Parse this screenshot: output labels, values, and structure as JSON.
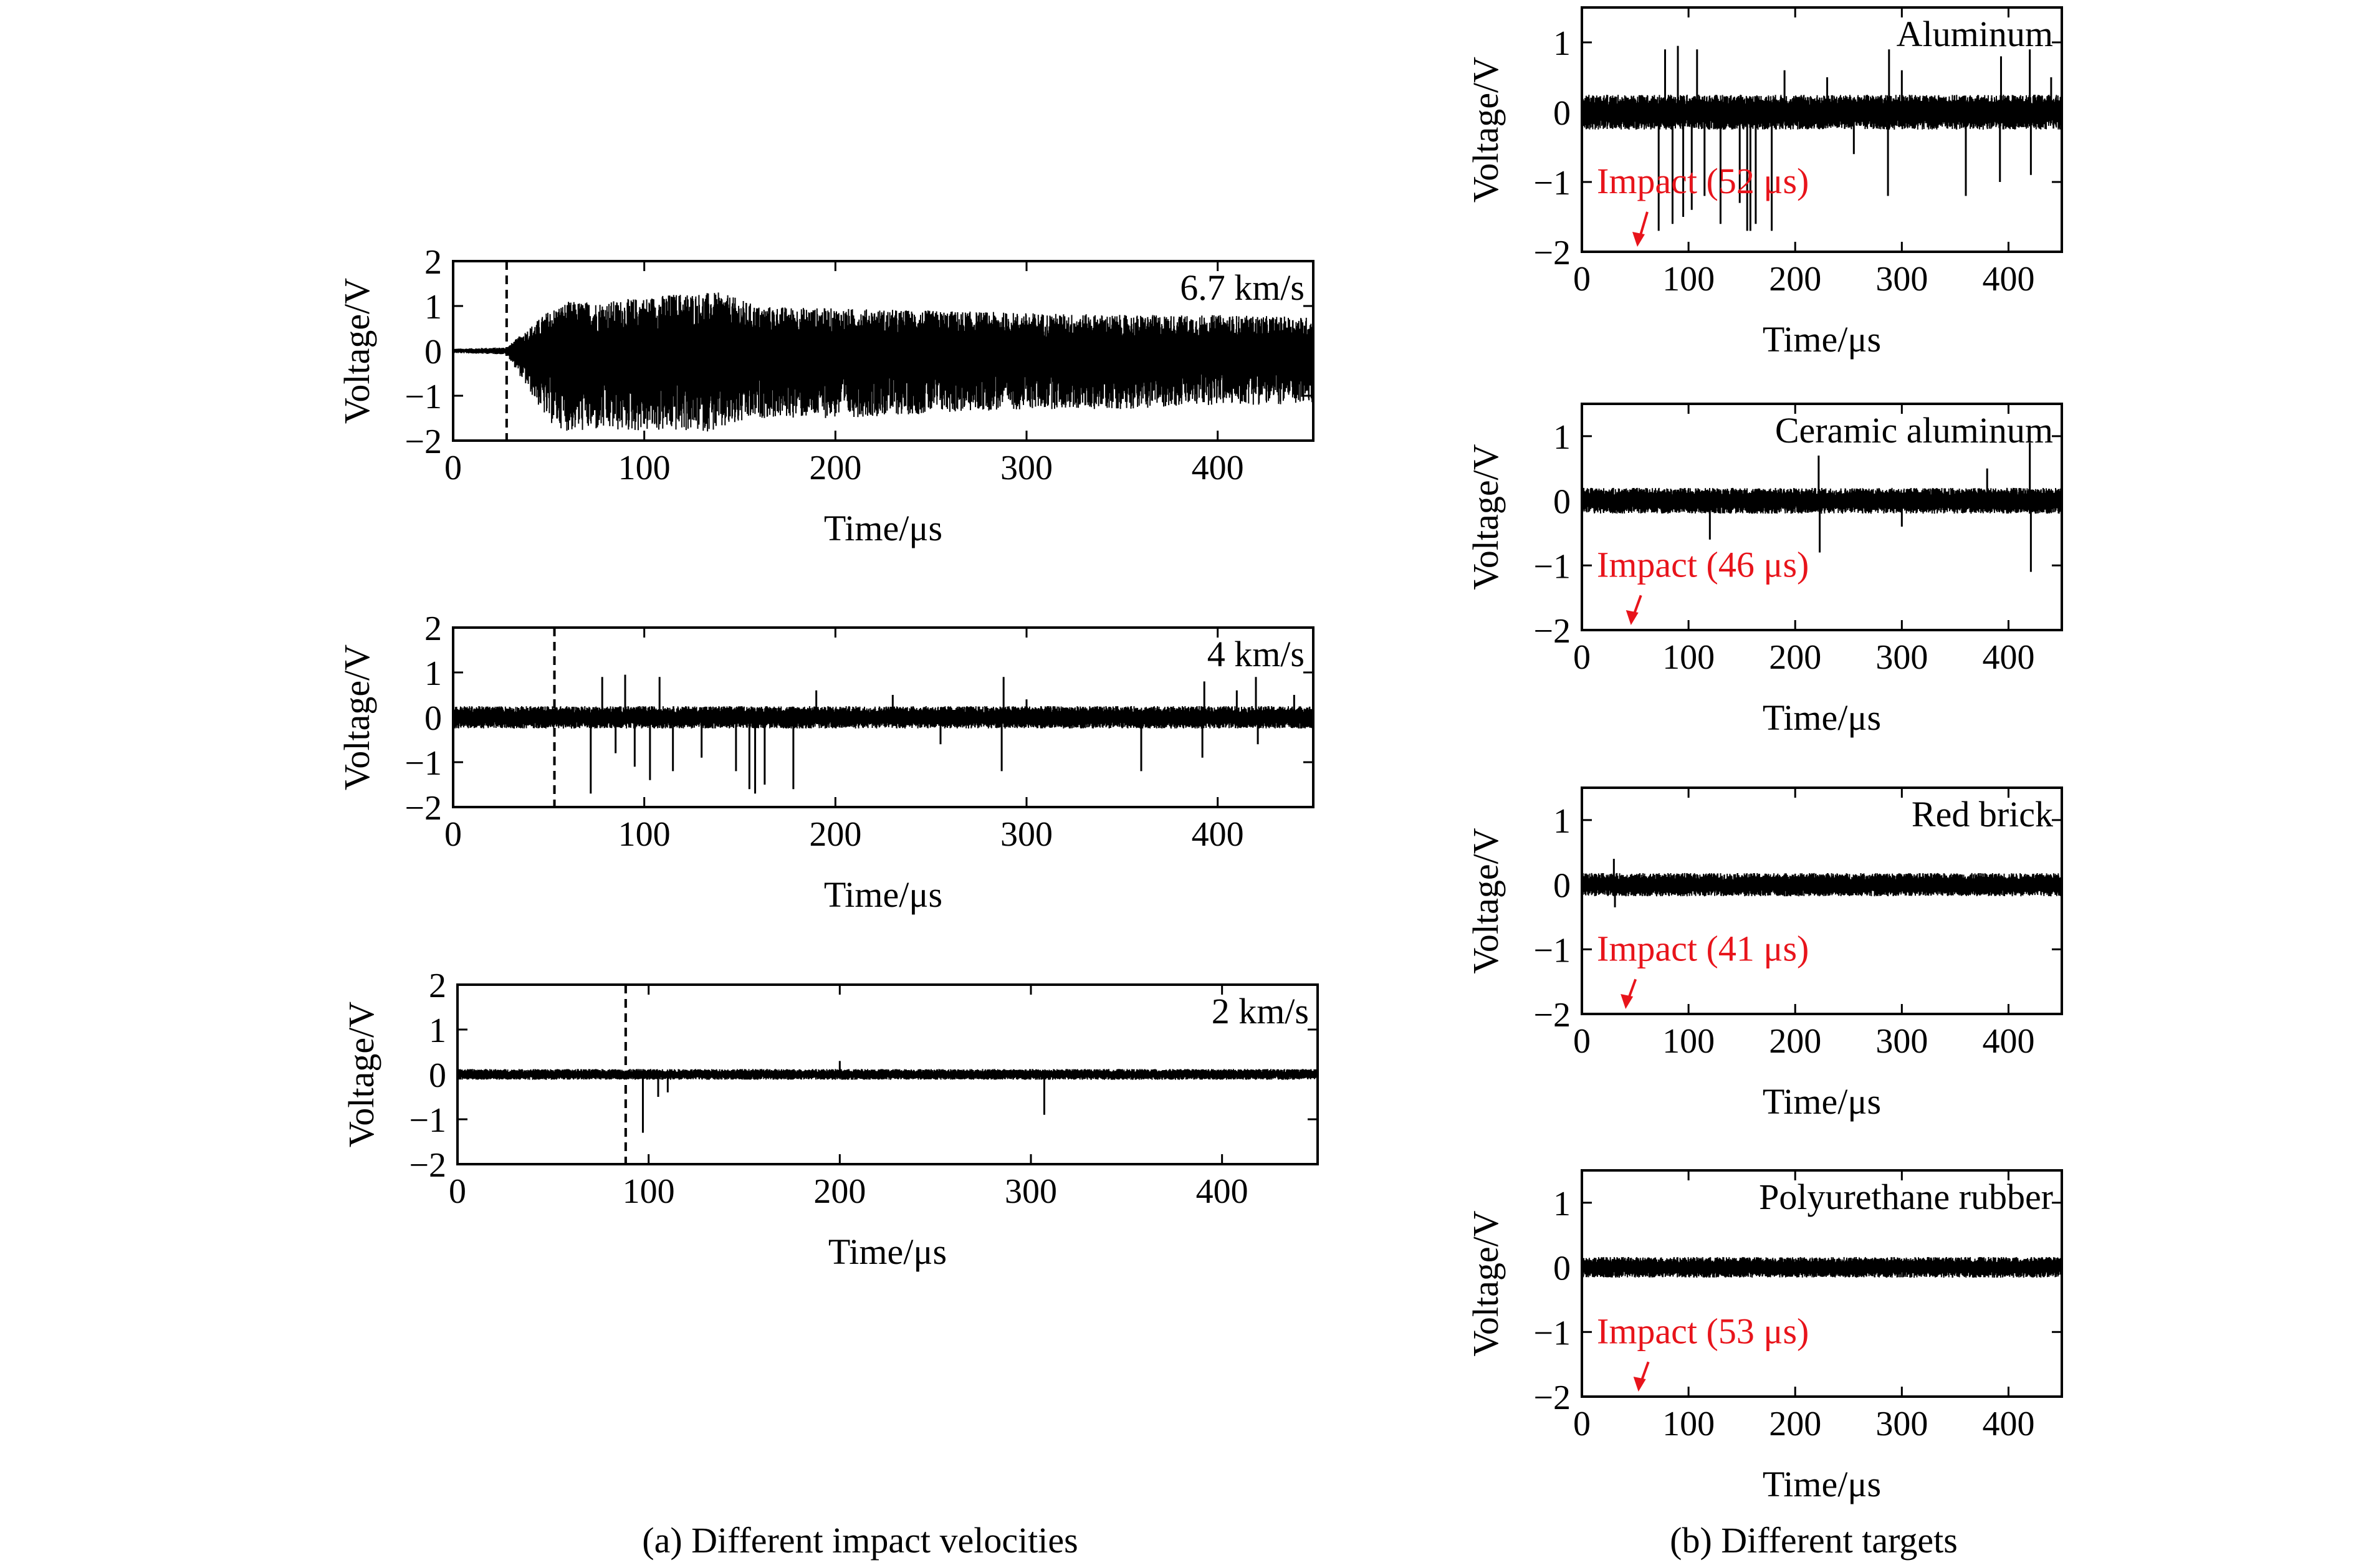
{
  "figure": {
    "caption_a": "(a) Different impact velocities",
    "caption_b": "(b) Different targets"
  },
  "colors": {
    "signal": "#000000",
    "annotation": "#e8141b",
    "axis": "#000000"
  },
  "chart_data": [
    {
      "type": "line",
      "panel": "a",
      "label": "6.7 km/s",
      "xlabel": "Time/μs",
      "ylabel": "Voltage/V",
      "xlim": [
        0,
        450
      ],
      "ylim": [
        -2,
        2
      ],
      "xticks": [
        0,
        100,
        200,
        300,
        400
      ],
      "yticks": [
        -2,
        -1,
        0,
        1,
        2
      ],
      "marker_x": 28,
      "envelope": {
        "t": [
          0,
          28,
          50,
          60,
          80,
          100,
          120,
          140,
          160,
          200,
          250,
          300,
          350,
          400,
          450
        ],
        "pos": [
          0.05,
          0.08,
          0.9,
          1.1,
          1.1,
          1.2,
          1.3,
          1.3,
          1.0,
          0.95,
          0.9,
          0.85,
          0.8,
          0.8,
          0.75
        ],
        "neg": [
          -0.05,
          -0.08,
          -1.6,
          -1.8,
          -1.8,
          -1.8,
          -1.8,
          -1.8,
          -1.5,
          -1.5,
          -1.4,
          -1.3,
          -1.3,
          -1.2,
          -1.2
        ]
      },
      "baseline_noise": 0.15
    },
    {
      "type": "line",
      "panel": "a",
      "label": "4 km/s",
      "xlabel": "Time/μs",
      "ylabel": "Voltage/V",
      "xlim": [
        0,
        450
      ],
      "ylim": [
        -2,
        2
      ],
      "xticks": [
        0,
        100,
        200,
        300,
        400
      ],
      "yticks": [
        -2,
        -1,
        0,
        1,
        2
      ],
      "marker_x": 53,
      "spikes": [
        [
          72,
          -1.7
        ],
        [
          78,
          0.9
        ],
        [
          85,
          -0.8
        ],
        [
          90,
          0.95
        ],
        [
          95,
          -1.1
        ],
        [
          103,
          -1.4
        ],
        [
          108,
          0.9
        ],
        [
          115,
          -1.2
        ],
        [
          130,
          -0.9
        ],
        [
          148,
          -1.2
        ],
        [
          155,
          -1.6
        ],
        [
          158,
          -1.7
        ],
        [
          163,
          -1.5
        ],
        [
          178,
          -1.6
        ],
        [
          190,
          0.6
        ],
        [
          230,
          0.5
        ],
        [
          255,
          -0.6
        ],
        [
          287,
          -1.2
        ],
        [
          288,
          0.9
        ],
        [
          300,
          0.4
        ],
        [
          360,
          -1.2
        ],
        [
          392,
          -0.9
        ],
        [
          393,
          0.8
        ],
        [
          410,
          0.6
        ],
        [
          420,
          0.9
        ],
        [
          421,
          -0.6
        ],
        [
          440,
          0.5
        ]
      ],
      "baseline_noise": 0.25
    },
    {
      "type": "line",
      "panel": "a",
      "label": "2 km/s",
      "xlabel": "Time/μs",
      "ylabel": "Voltage/V",
      "xlim": [
        0,
        450
      ],
      "ylim": [
        -2,
        2
      ],
      "xticks": [
        0,
        100,
        200,
        300,
        400
      ],
      "yticks": [
        -2,
        -1,
        0,
        1,
        2
      ],
      "marker_x": 88,
      "spikes": [
        [
          97,
          -1.3
        ],
        [
          105,
          -0.5
        ],
        [
          110,
          -0.4
        ],
        [
          200,
          0.3
        ],
        [
          307,
          -0.9
        ]
      ],
      "baseline_noise": 0.12
    },
    {
      "type": "line",
      "panel": "b",
      "label": "Aluminum",
      "xlabel": "Time/μs",
      "ylabel": "Voltage/V",
      "xlim": [
        0,
        450
      ],
      "ylim": [
        -2,
        1.5
      ],
      "xticks": [
        0,
        100,
        200,
        300,
        400
      ],
      "yticks": [
        -2,
        -1,
        0,
        1
      ],
      "annotation": "Impact (52 μs)",
      "impact_x": 52,
      "spikes": [
        [
          72,
          -1.7
        ],
        [
          78,
          0.9
        ],
        [
          85,
          -1.6
        ],
        [
          90,
          0.95
        ],
        [
          95,
          -1.5
        ],
        [
          103,
          -1.4
        ],
        [
          108,
          0.9
        ],
        [
          115,
          -1.2
        ],
        [
          130,
          -1.6
        ],
        [
          148,
          -1.3
        ],
        [
          155,
          -1.7
        ],
        [
          158,
          -1.7
        ],
        [
          163,
          -1.6
        ],
        [
          178,
          -1.7
        ],
        [
          190,
          0.6
        ],
        [
          230,
          0.5
        ],
        [
          255,
          -0.6
        ],
        [
          287,
          -1.2
        ],
        [
          288,
          0.9
        ],
        [
          300,
          0.6
        ],
        [
          360,
          -1.2
        ],
        [
          392,
          -1.0
        ],
        [
          393,
          0.8
        ],
        [
          420,
          0.9
        ],
        [
          421,
          -0.9
        ],
        [
          440,
          0.5
        ]
      ],
      "baseline_noise": 0.25
    },
    {
      "type": "line",
      "panel": "b",
      "label": "Ceramic aluminum",
      "xlabel": "Time/μs",
      "ylabel": "Voltage/V",
      "xlim": [
        0,
        450
      ],
      "ylim": [
        -2,
        1.5
      ],
      "xticks": [
        0,
        100,
        200,
        300,
        400
      ],
      "yticks": [
        -2,
        -1,
        0,
        1
      ],
      "annotation": "Impact (46 μs)",
      "impact_x": 46,
      "spikes": [
        [
          120,
          -0.6
        ],
        [
          222,
          0.7
        ],
        [
          223,
          -0.8
        ],
        [
          300,
          -0.4
        ],
        [
          380,
          0.5
        ],
        [
          420,
          0.9
        ],
        [
          421,
          -1.1
        ]
      ],
      "baseline_noise": 0.2
    },
    {
      "type": "line",
      "panel": "b",
      "label": "Red brick",
      "xlabel": "Time/μs",
      "ylabel": "Voltage/V",
      "xlim": [
        0,
        450
      ],
      "ylim": [
        -2,
        1.5
      ],
      "xticks": [
        0,
        100,
        200,
        300,
        400
      ],
      "yticks": [
        -2,
        -1,
        0,
        1
      ],
      "annotation": "Impact (41 μs)",
      "impact_x": 41,
      "spikes": [
        [
          30,
          0.4
        ],
        [
          31,
          -0.35
        ]
      ],
      "baseline_noise": 0.18
    },
    {
      "type": "line",
      "panel": "b",
      "label": "Polyurethane rubber",
      "xlabel": "Time/μs",
      "ylabel": "Voltage/V",
      "xlim": [
        0,
        450
      ],
      "ylim": [
        -2,
        1.5
      ],
      "xticks": [
        0,
        100,
        200,
        300,
        400
      ],
      "yticks": [
        -2,
        -1,
        0,
        1
      ],
      "annotation": "Impact (53 μs)",
      "impact_x": 53,
      "spikes": [],
      "baseline_noise": 0.16
    }
  ]
}
